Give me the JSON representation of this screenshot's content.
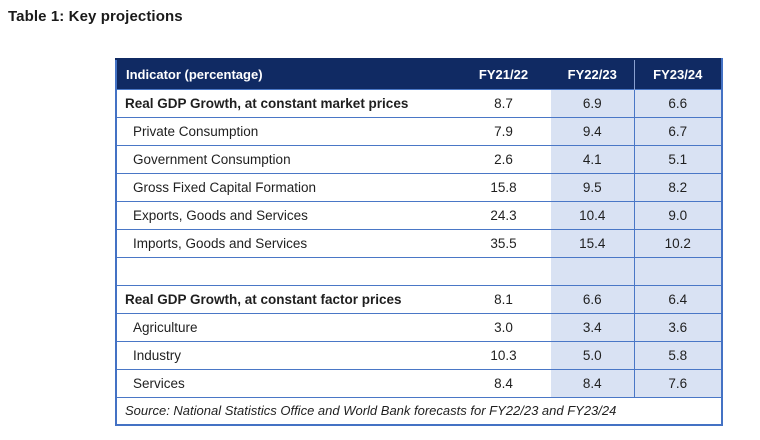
{
  "page": {
    "title": "Table 1: Key projections"
  },
  "table": {
    "columns": [
      "Indicator (percentage)",
      "FY21/22",
      "FY22/23",
      "FY23/24"
    ],
    "rows": [
      {
        "label": "Real GDP Growth, at constant market prices",
        "bold": true,
        "values": [
          "8.7",
          "6.9",
          "6.6"
        ]
      },
      {
        "label": "Private Consumption",
        "bold": false,
        "values": [
          "7.9",
          "9.4",
          "6.7"
        ]
      },
      {
        "label": "Government Consumption",
        "bold": false,
        "values": [
          "2.6",
          "4.1",
          "5.1"
        ]
      },
      {
        "label": "Gross Fixed Capital Formation",
        "bold": false,
        "values": [
          "15.8",
          "9.5",
          "8.2"
        ]
      },
      {
        "label": "Exports, Goods and Services",
        "bold": false,
        "values": [
          "24.3",
          "10.4",
          "9.0"
        ]
      },
      {
        "label": "Imports, Goods and Services",
        "bold": false,
        "values": [
          "35.5",
          "15.4",
          "10.2"
        ]
      },
      {
        "label": "",
        "bold": false,
        "values": [
          "",
          "",
          ""
        ]
      },
      {
        "label": "Real GDP Growth, at constant factor prices",
        "bold": true,
        "values": [
          "8.1",
          "6.6",
          "6.4"
        ]
      },
      {
        "label": "Agriculture",
        "bold": false,
        "values": [
          "3.0",
          "3.4",
          "3.6"
        ]
      },
      {
        "label": "Industry",
        "bold": false,
        "values": [
          "10.3",
          "5.0",
          "5.8"
        ]
      },
      {
        "label": "Services",
        "bold": false,
        "values": [
          "8.4",
          "8.4",
          "7.6"
        ]
      }
    ],
    "source_note": "Source: National Statistics Office and World Bank forecasts for FY22/23 and FY23/24"
  },
  "colors": {
    "header_bg": "#102a63",
    "header_text": "#ffffff",
    "highlight_cell_bg": "#d9e2f3",
    "border_blue": "#4472c4",
    "body_text": "#1f1f1f"
  }
}
